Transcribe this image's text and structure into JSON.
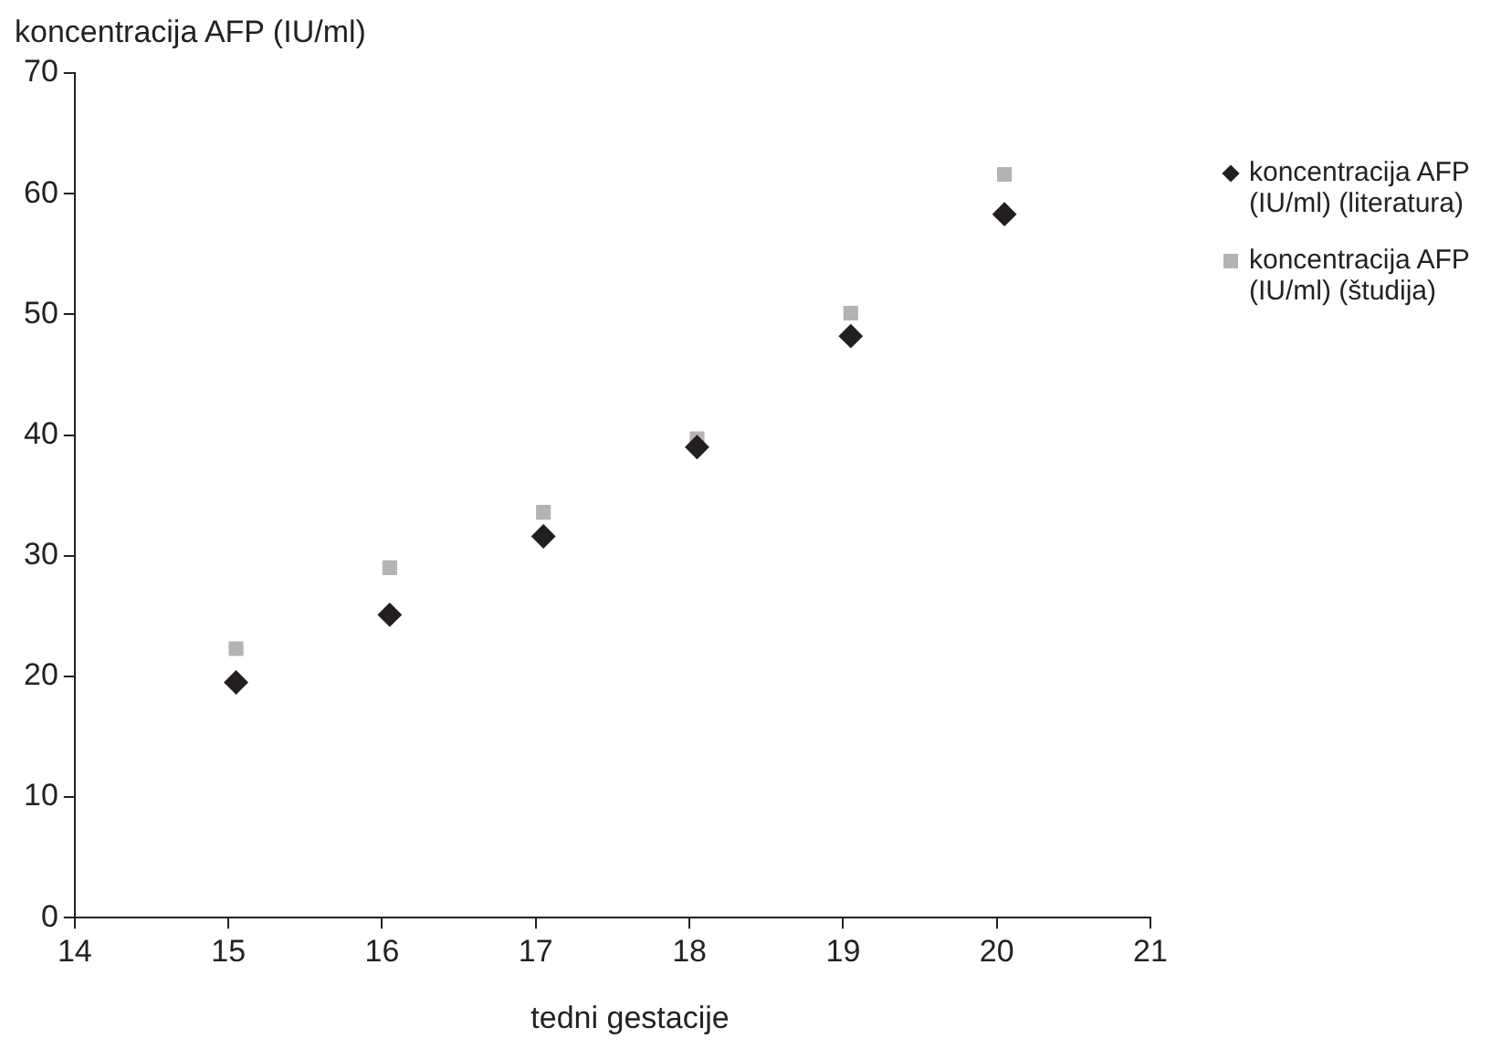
{
  "chart_data": {
    "type": "scatter",
    "ylabel": "koncentracija AFP (IU/ml)",
    "xlabel": "tedni gestacije",
    "x": [
      15.05,
      16.05,
      17.05,
      18.05,
      19.05,
      20.05
    ],
    "series": [
      {
        "name": "koncentracija AFP (IU/ml) (literatura)",
        "color": "#231f20",
        "marker": "diamond",
        "values": [
          19.5,
          25.1,
          31.6,
          39.0,
          48.2,
          58.3
        ]
      },
      {
        "name": "koncentracija AFP (IU/ml) (študija)",
        "color": "#b3b3b3",
        "marker": "square",
        "values": [
          22.3,
          29.0,
          33.6,
          39.7,
          50.1,
          61.6
        ]
      }
    ],
    "xlim": [
      14,
      21
    ],
    "xticks": [
      14,
      15,
      16,
      17,
      18,
      19,
      20,
      21
    ],
    "ylim": [
      0,
      70
    ],
    "yticks": [
      0,
      10,
      20,
      30,
      40,
      50,
      60,
      70
    ],
    "grid": false,
    "legend": "top right"
  }
}
